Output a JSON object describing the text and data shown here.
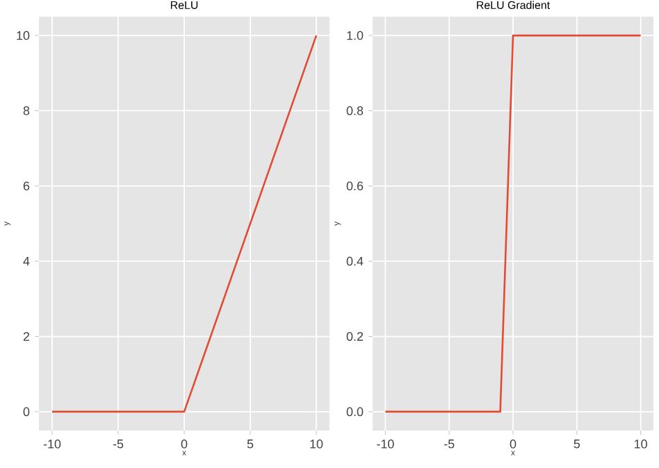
{
  "chart_data": [
    {
      "type": "line",
      "title": "ReLU",
      "xlabel": "x",
      "ylabel": "y",
      "x": [
        -10,
        0,
        10
      ],
      "series": [
        {
          "color": "#e24a33",
          "values": [
            0,
            0,
            10
          ]
        }
      ],
      "xlim": [
        -11,
        11
      ],
      "ylim": [
        -0.5,
        10.5
      ],
      "xticks": [
        -10,
        -5,
        0,
        5,
        10
      ],
      "yticks": [
        0,
        2,
        4,
        6,
        8,
        10
      ],
      "grid": true
    },
    {
      "type": "line",
      "title": "ReLU Gradient",
      "xlabel": "x",
      "ylabel": "y",
      "x": [
        -10,
        -1,
        0,
        10
      ],
      "series": [
        {
          "color": "#e24a33",
          "values": [
            0,
            0,
            1,
            1
          ]
        }
      ],
      "xlim": [
        -11,
        11
      ],
      "ylim": [
        -0.05,
        1.05
      ],
      "xticks": [
        -10,
        -5,
        0,
        5,
        10
      ],
      "yticks": [
        {
          "value": 0,
          "label": "0.0"
        },
        {
          "value": 0.2,
          "label": "0.2"
        },
        {
          "value": 0.4,
          "label": "0.4"
        },
        {
          "value": 0.6,
          "label": "0.6"
        },
        {
          "value": 0.8,
          "label": "0.8"
        },
        {
          "value": 1,
          "label": "1.0"
        }
      ],
      "grid": true
    }
  ]
}
